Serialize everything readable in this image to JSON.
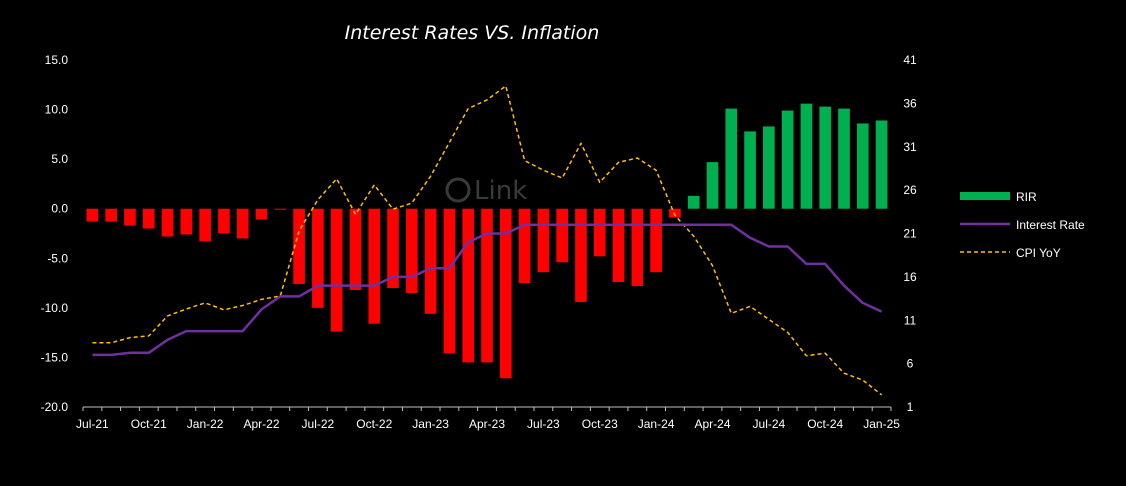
{
  "chart_data": {
    "type": "bar",
    "title": "Interest Rates VS. Inflation",
    "watermark": "Link",
    "x_tick_labels": [
      "Jul-21",
      "Oct-21",
      "Jan-22",
      "Apr-22",
      "Jul-22",
      "Oct-22",
      "Jan-23",
      "Apr-23",
      "Jul-23",
      "Oct-23",
      "Jan-24",
      "Apr-24",
      "Jul-24",
      "Oct-24",
      "Jan-25"
    ],
    "months": [
      "Jul-21",
      "Aug-21",
      "Sep-21",
      "Oct-21",
      "Nov-21",
      "Dec-21",
      "Jan-22",
      "Feb-22",
      "Mar-22",
      "Apr-22",
      "May-22",
      "Jun-22",
      "Jul-22",
      "Aug-22",
      "Sep-22",
      "Oct-22",
      "Nov-22",
      "Dec-22",
      "Jan-23",
      "Feb-23",
      "Mar-23",
      "Apr-23",
      "May-23",
      "Jun-23",
      "Jul-23",
      "Aug-23",
      "Sep-23",
      "Oct-23",
      "Nov-23",
      "Dec-23",
      "Jan-24",
      "Feb-24",
      "Mar-24",
      "Apr-24",
      "May-24",
      "Jun-24",
      "Jul-24",
      "Aug-24",
      "Sep-24",
      "Oct-24",
      "Nov-24",
      "Dec-24",
      "Jan-25"
    ],
    "y_left": {
      "ticks": [
        "15.0",
        "10.0",
        "5.0",
        "0.0",
        "-5.0",
        "-10.0",
        "-15.0",
        "-20.0"
      ],
      "min": -20,
      "max": 15
    },
    "y_right": {
      "ticks": [
        "41",
        "36",
        "31",
        "26",
        "21",
        "16",
        "11",
        "6",
        "1"
      ],
      "min": 1,
      "max": 41
    },
    "series": [
      {
        "name": "RIR",
        "kind": "bar",
        "axis": "left",
        "positive_color": "#00b050",
        "negative_color": "#ff0000",
        "values": [
          -1.3,
          -1.3,
          -1.7,
          -2.0,
          -2.8,
          -2.6,
          -3.3,
          -2.5,
          -3.0,
          -1.1,
          -0.1,
          -7.6,
          -10.0,
          -12.4,
          -8.2,
          -11.6,
          -8.0,
          -8.5,
          -10.6,
          -14.6,
          -15.5,
          -15.5,
          -17.1,
          -7.5,
          -6.4,
          -5.4,
          -9.4,
          -4.8,
          -7.4,
          -7.8,
          -6.4,
          -0.9,
          1.3,
          4.7,
          10.1,
          7.8,
          8.3,
          9.9,
          10.6,
          10.3,
          10.1,
          8.6,
          8.9
        ]
      },
      {
        "name": "Interest Rate",
        "kind": "line",
        "axis": "right",
        "color": "#7030a0",
        "dash": "solid",
        "values": [
          7.0,
          7.0,
          7.25,
          7.25,
          8.75,
          9.75,
          9.75,
          9.75,
          9.75,
          12.25,
          13.75,
          13.75,
          15.0,
          15.0,
          15.0,
          15.0,
          16.0,
          16.0,
          17.0,
          17.0,
          20.0,
          21.0,
          21.0,
          22.0,
          22.0,
          22.0,
          22.0,
          22.0,
          22.0,
          22.0,
          22.0,
          22.0,
          22.0,
          22.0,
          22.0,
          20.5,
          19.5,
          19.5,
          17.5,
          17.5,
          15.0,
          13.0,
          12.0
        ]
      },
      {
        "name": "CPI YoY",
        "kind": "line",
        "axis": "right",
        "color": "#ffc000",
        "dash": "dashed",
        "values": [
          8.4,
          8.4,
          9.0,
          9.2,
          11.5,
          12.3,
          13.0,
          12.2,
          12.7,
          13.4,
          13.8,
          21.3,
          24.9,
          27.3,
          23.2,
          26.6,
          23.8,
          24.5,
          27.6,
          31.5,
          35.4,
          36.4,
          38.0,
          29.4,
          28.3,
          27.4,
          31.4,
          26.9,
          29.2,
          29.7,
          28.3,
          23.1,
          20.7,
          17.3,
          11.8,
          12.6,
          11.1,
          9.6,
          6.9,
          7.2,
          4.9,
          4.1,
          2.4
        ]
      }
    ],
    "legend": {
      "position": "right",
      "items": [
        {
          "label": "RIR",
          "type": "box",
          "color": "#00b050"
        },
        {
          "label": "Interest Rate",
          "type": "line",
          "color": "#7030a0"
        },
        {
          "label": "CPI YoY",
          "type": "dashed",
          "color": "#ffc000"
        }
      ]
    }
  }
}
